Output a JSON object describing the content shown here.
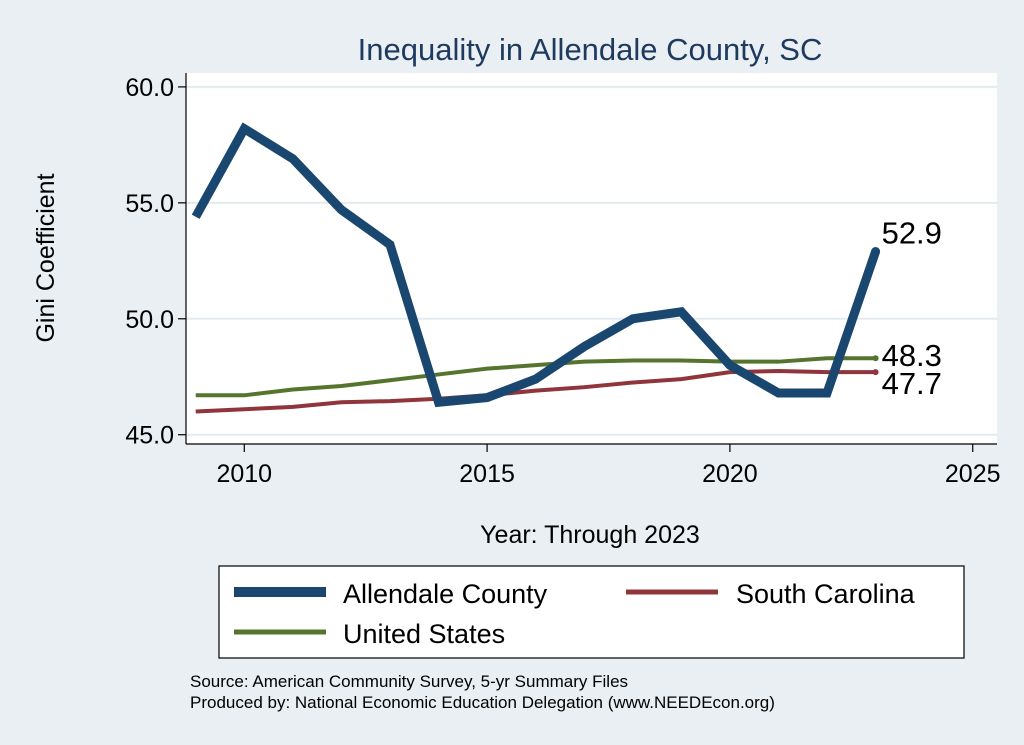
{
  "chart_data": {
    "type": "line",
    "title": "Inequality in Allendale County, SC",
    "xlabel": "Year: Through 2023",
    "ylabel": "Gini Coefficient",
    "xlim": [
      2008.8,
      2025.5
    ],
    "ylim": [
      44.6,
      60.6
    ],
    "xticks": [
      2010,
      2015,
      2020,
      2025
    ],
    "yticks": [
      45.0,
      50.0,
      55.0,
      60.0
    ],
    "ytick_labels": [
      "45.0",
      "50.0",
      "55.0",
      "60.0"
    ],
    "grid": true,
    "x": [
      2009,
      2010,
      2011,
      2012,
      2013,
      2014,
      2015,
      2016,
      2017,
      2018,
      2019,
      2020,
      2021,
      2022,
      2023
    ],
    "series": [
      {
        "name": "Allendale County",
        "color": "#1a476f",
        "values": [
          54.4,
          58.2,
          56.9,
          54.7,
          53.2,
          46.4,
          46.6,
          47.4,
          48.8,
          50.0,
          50.3,
          48.0,
          46.8,
          46.8,
          52.9
        ],
        "end_label": "52.9"
      },
      {
        "name": "South Carolina",
        "color": "#90353b",
        "values": [
          46.0,
          46.1,
          46.2,
          46.4,
          46.45,
          46.55,
          46.7,
          46.9,
          47.05,
          47.25,
          47.4,
          47.7,
          47.75,
          47.7,
          47.7
        ],
        "end_label": "47.7"
      },
      {
        "name": "United States",
        "color": "#55752f",
        "values": [
          46.7,
          46.7,
          46.95,
          47.1,
          47.35,
          47.6,
          47.85,
          48.0,
          48.15,
          48.2,
          48.2,
          48.15,
          48.15,
          48.3,
          48.3
        ],
        "end_label": "48.3"
      }
    ],
    "legend": {
      "placement": "bottom",
      "entries": [
        "Allendale County",
        "South Carolina",
        "United States"
      ]
    },
    "source_lines": [
      "Source: American Community Survey, 5-yr Summary Files",
      "Produced by: National Economic Education Delegation (www.NEEDEcon.org)"
    ]
  }
}
